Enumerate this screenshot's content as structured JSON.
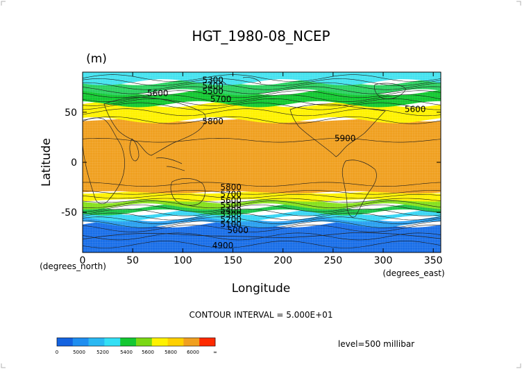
{
  "chart_data": {
    "type": "contour",
    "title": "HGT_1980-08_NCEP",
    "units": "(m)",
    "xlabel": "Longitude",
    "ylabel": "Latitude",
    "x_units": "(degrees_east)",
    "y_units": "(degrees_north)",
    "xlim": [
      0,
      357.5
    ],
    "ylim": [
      -90,
      90
    ],
    "x_ticks": [
      0,
      50,
      100,
      150,
      200,
      250,
      300,
      350
    ],
    "y_ticks": [
      -50,
      0,
      50
    ],
    "contour_interval_text": "CONTOUR INTERVAL = 5.000E+01",
    "level_text": "level=500 millibar",
    "contour_labels": [
      {
        "text": "5300",
        "lon": 130,
        "lat": 82
      },
      {
        "text": "5400",
        "lon": 130,
        "lat": 76
      },
      {
        "text": "5500",
        "lon": 130,
        "lat": 71
      },
      {
        "text": "5600",
        "lon": 75,
        "lat": 69
      },
      {
        "text": "5700",
        "lon": 138,
        "lat": 63
      },
      {
        "text": "5600",
        "lon": 332,
        "lat": 53
      },
      {
        "text": "5800",
        "lon": 130,
        "lat": 41
      },
      {
        "text": "5900",
        "lon": 262,
        "lat": 24
      },
      {
        "text": "5800",
        "lon": 148,
        "lat": -25
      },
      {
        "text": "5700",
        "lon": 148,
        "lat": -32
      },
      {
        "text": "5600",
        "lon": 148,
        "lat": -38
      },
      {
        "text": "5500",
        "lon": 148,
        "lat": -43
      },
      {
        "text": "5400",
        "lon": 148,
        "lat": -48
      },
      {
        "text": "5300",
        "lon": 148,
        "lat": -52
      },
      {
        "text": "5200",
        "lon": 148,
        "lat": -57
      },
      {
        "text": "5100",
        "lon": 148,
        "lat": -62
      },
      {
        "text": "5000",
        "lon": 155,
        "lat": -68
      },
      {
        "text": "4900",
        "lon": 140,
        "lat": -83
      }
    ],
    "bands": [
      {
        "value_range": [
          -90,
          -62
        ],
        "color": "#1a6fe8"
      },
      {
        "value_range": [
          -62,
          -56
        ],
        "color": "#2aa0f0"
      },
      {
        "value_range": [
          -56,
          -50
        ],
        "color": "#39d6f5"
      },
      {
        "value_range": [
          -50,
          -44
        ],
        "color": "#1fc44a"
      },
      {
        "value_range": [
          -44,
          -38
        ],
        "color": "#86e01c"
      },
      {
        "value_range": [
          -38,
          -30
        ],
        "color": "#fff200"
      },
      {
        "value_range": [
          -30,
          42
        ],
        "color": "#f0a020"
      },
      {
        "value_range": [
          42,
          58
        ],
        "color": "#fff200"
      },
      {
        "value_range": [
          58,
          70
        ],
        "color": "#12c830"
      },
      {
        "value_range": [
          70,
          80
        ],
        "color": "#2bd160"
      },
      {
        "value_range": [
          80,
          90
        ],
        "color": "#45e3f0"
      }
    ],
    "colorbar": {
      "labels": [
        "0",
        "5000",
        "5200",
        "5400",
        "5600",
        "5800",
        "6000",
        "∞"
      ],
      "colors": [
        "#1463e0",
        "#1f8ef0",
        "#2ab8f2",
        "#33e0f5",
        "#14c832",
        "#7bd814",
        "#fff200",
        "#ffd000",
        "#f0a020",
        "#ff2a00"
      ]
    }
  }
}
